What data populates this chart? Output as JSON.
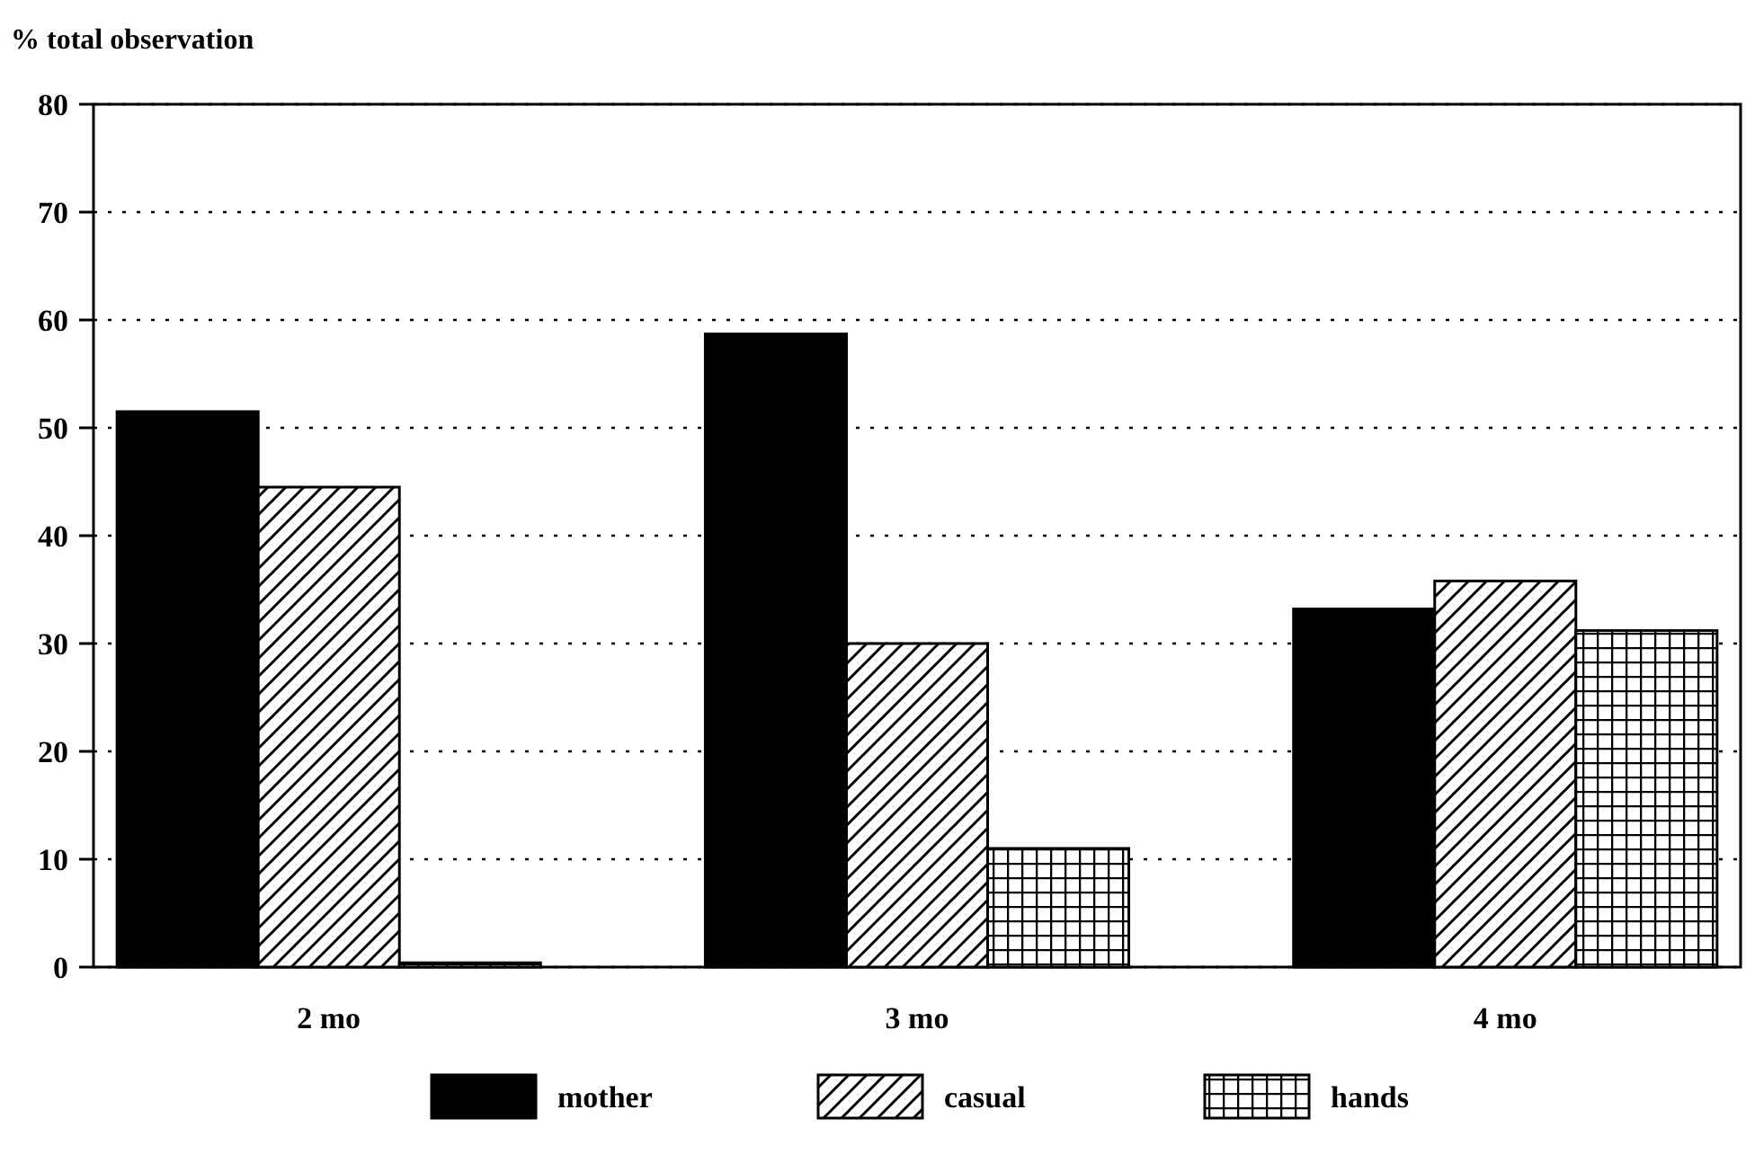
{
  "chart_data": {
    "type": "bar",
    "ylabel": "% total observation",
    "categories": [
      "2 mo",
      "3 mo",
      "4 mo"
    ],
    "series": [
      {
        "name": "mother",
        "color": "#000000",
        "values": [
          51.5,
          58.7,
          33.2
        ]
      },
      {
        "name": "casual",
        "color": "#000000",
        "values": [
          44.5,
          30,
          35.8
        ]
      },
      {
        "name": "hands",
        "color": "#000000",
        "values": [
          0.4,
          11,
          31.2
        ]
      }
    ],
    "ylim": [
      0,
      80
    ],
    "yticks": [
      0,
      10,
      20,
      30,
      40,
      50,
      60,
      70,
      80
    ],
    "grid": "y",
    "legend": "bottom"
  }
}
